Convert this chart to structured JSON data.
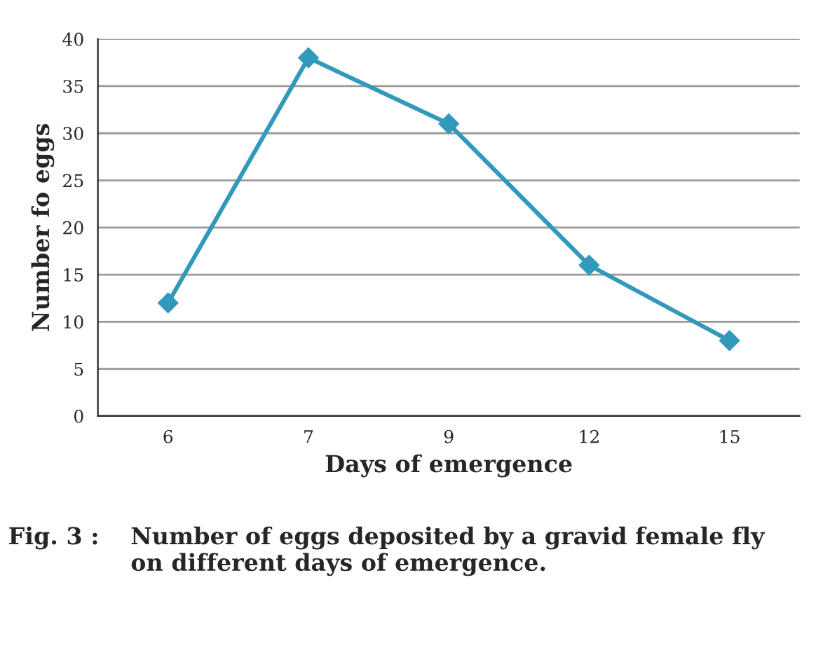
{
  "chart_data": {
    "type": "line",
    "xlabel": "Days of emergence",
    "ylabel": "Number fo eggs",
    "categories": [
      "6",
      "7",
      "9",
      "12",
      "15"
    ],
    "series": [
      {
        "color": "#3399bb",
        "values": [
          12,
          38,
          31,
          16,
          8
        ]
      }
    ],
    "ylim": [
      0,
      40
    ],
    "yticks": [
      0,
      5,
      10,
      15,
      20,
      25,
      30,
      35,
      40
    ],
    "grid": "y",
    "marker": "diamond",
    "line_style": "solid",
    "annotations": [
      "Fig. 3 :",
      "Number of eggs deposited by a gravid female fly on different days of emergence."
    ]
  }
}
